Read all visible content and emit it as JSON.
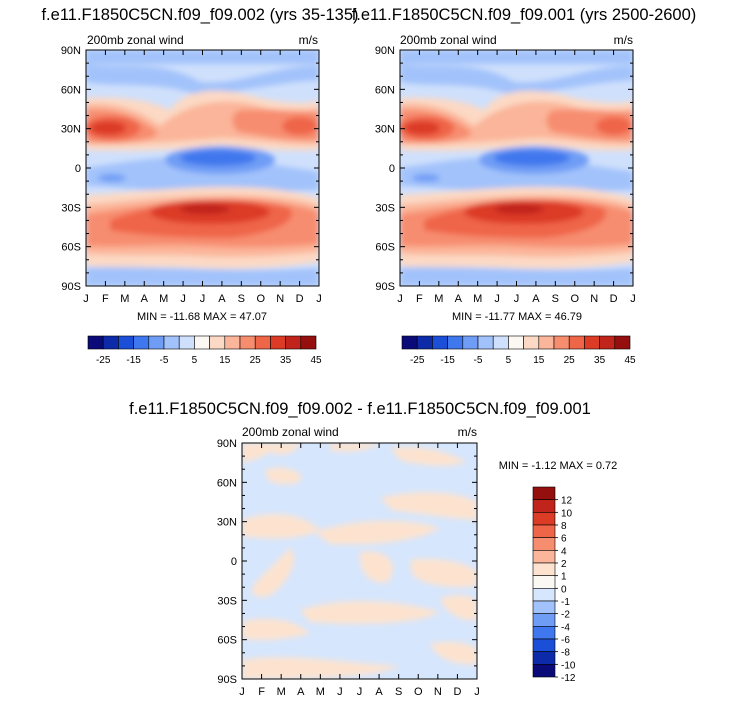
{
  "colors": {
    "levels_main": [
      "#0a0a78",
      "#0d2ba8",
      "#1c4fd8",
      "#3f77ee",
      "#6f9df5",
      "#a2c2fb",
      "#cfe0fc",
      "#fbf7f2",
      "#fcd9c4",
      "#fbb59a",
      "#f78d6f",
      "#ef6548",
      "#dc3b25",
      "#c0241a",
      "#960f0f"
    ],
    "levels_diff": [
      "#0a0a78",
      "#0d2ba8",
      "#1c4fd8",
      "#3f77ee",
      "#6f9df5",
      "#a2c2fb",
      "#d6e6fd",
      "#fbf7f2",
      "#fde3cf",
      "#fbb59a",
      "#f78d6f",
      "#ef6548",
      "#dc3b25",
      "#c0241a",
      "#960f0f"
    ]
  },
  "chart_data": [
    {
      "type": "heatmap",
      "title": "f.e11.F1850C5CN.f09_f09.002 (yrs 35-135)",
      "subtitle_left": "200mb zonal wind",
      "subtitle_right": "m/s",
      "x_ticks": [
        "J",
        "F",
        "M",
        "A",
        "M",
        "J",
        "J",
        "A",
        "S",
        "O",
        "N",
        "D",
        "J"
      ],
      "y_ticks": [
        "90N",
        "60N",
        "30N",
        "0",
        "30S",
        "60S",
        "90S"
      ],
      "stats": "MIN = -11.68 MAX =  47.07",
      "colorbar_labels": [
        "-25",
        "-15",
        "-5",
        "5",
        "15",
        "25",
        "35",
        "45"
      ],
      "levels": [
        -30,
        -25,
        -20,
        -15,
        -10,
        -5,
        0,
        5,
        10,
        15,
        20,
        25,
        30,
        35,
        40,
        45
      ],
      "min": -11.68,
      "max": 47.07
    },
    {
      "type": "heatmap",
      "title": "f.e11.F1850C5CN.f09_f09.001 (yrs 2500-2600)",
      "subtitle_left": "200mb zonal wind",
      "subtitle_right": "m/s",
      "x_ticks": [
        "J",
        "F",
        "M",
        "A",
        "M",
        "J",
        "J",
        "A",
        "S",
        "O",
        "N",
        "D",
        "J"
      ],
      "y_ticks": [
        "90N",
        "60N",
        "30N",
        "0",
        "30S",
        "60S",
        "90S"
      ],
      "stats": "MIN = -11.77 MAX =  46.79",
      "colorbar_labels": [
        "-25",
        "-15",
        "-5",
        "5",
        "15",
        "25",
        "35",
        "45"
      ],
      "levels": [
        -30,
        -25,
        -20,
        -15,
        -10,
        -5,
        0,
        5,
        10,
        15,
        20,
        25,
        30,
        35,
        40,
        45
      ],
      "min": -11.77,
      "max": 46.79
    },
    {
      "type": "heatmap",
      "title": "f.e11.F1850C5CN.f09_f09.002 - f.e11.F1850C5CN.f09_f09.001",
      "subtitle_left": "200mb zonal wind",
      "subtitle_right": "m/s",
      "x_ticks": [
        "J",
        "F",
        "M",
        "A",
        "M",
        "J",
        "J",
        "A",
        "S",
        "O",
        "N",
        "D",
        "J"
      ],
      "y_ticks": [
        "90N",
        "60N",
        "30N",
        "0",
        "30S",
        "60S",
        "90S"
      ],
      "stats": "MIN =  -1.12 MAX =   0.72",
      "colorbar_labels": [
        "12",
        "10",
        "8",
        "6",
        "4",
        "2",
        "1",
        "0",
        "-1",
        "-2",
        "-4",
        "-6",
        "-8",
        "-10",
        "-12"
      ],
      "levels": [
        -14,
        -12,
        -10,
        -8,
        -6,
        -4,
        -2,
        -1,
        0,
        1,
        2,
        4,
        6,
        8,
        10,
        12,
        14
      ],
      "min": -1.12,
      "max": 0.72
    }
  ]
}
